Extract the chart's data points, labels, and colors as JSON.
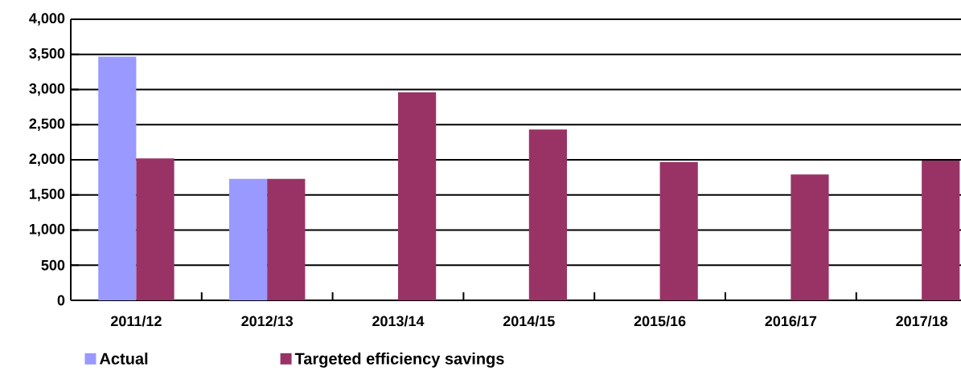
{
  "chart_data": {
    "type": "bar",
    "categories": [
      "2011/12",
      "2012/13",
      "2013/14",
      "2014/15",
      "2015/16",
      "2016/17",
      "2017/18"
    ],
    "series": [
      {
        "name": "Actual",
        "color": "#9999ff",
        "values": [
          3470,
          1730,
          null,
          null,
          null,
          null,
          null
        ]
      },
      {
        "name": "Targeted efficiency savings",
        "color": "#993366",
        "values": [
          2020,
          1730,
          2960,
          2430,
          1970,
          1790,
          1990
        ]
      }
    ],
    "ylim": [
      0,
      4000
    ],
    "yticks": [
      {
        "value": 0,
        "label": "0"
      },
      {
        "value": 500,
        "label": "500"
      },
      {
        "value": 1000,
        "label": "1,000"
      },
      {
        "value": 1500,
        "label": "1,500"
      },
      {
        "value": 2000,
        "label": "2,000"
      },
      {
        "value": 2500,
        "label": "2,500"
      },
      {
        "value": 3000,
        "label": "3,000"
      },
      {
        "value": 3500,
        "label": "3,500"
      },
      {
        "value": 4000,
        "label": "4,000"
      }
    ],
    "grid": "y",
    "legend": "bottom left"
  }
}
